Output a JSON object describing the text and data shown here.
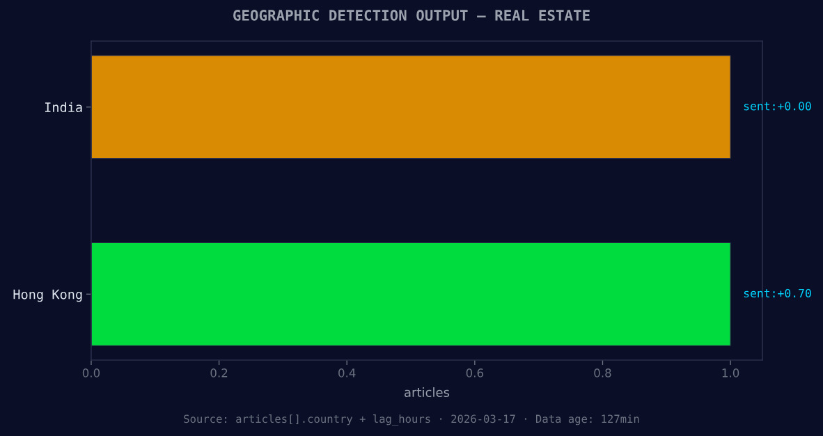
{
  "chart_data": {
    "type": "bar",
    "orientation": "horizontal",
    "title": "GEOGRAPHIC DETECTION OUTPUT — REAL ESTATE",
    "xlabel": "articles",
    "categories": [
      "India",
      "Hong Kong"
    ],
    "values": [
      1.0,
      1.0
    ],
    "colors": [
      "#d98b04",
      "#00db3d"
    ],
    "xlim": [
      0,
      1.05
    ],
    "xticks": [
      {
        "value": 0,
        "label": "0.0"
      },
      {
        "value": 0.2,
        "label": "0.2"
      },
      {
        "value": 0.4,
        "label": "0.4"
      },
      {
        "value": 0.6,
        "label": "0.6"
      },
      {
        "value": 0.8,
        "label": "0.8"
      },
      {
        "value": 1.0,
        "label": "1.0"
      }
    ],
    "annotations": [
      {
        "text": "sent:+0.00",
        "x": 1.0,
        "y": "India"
      },
      {
        "text": "sent:+0.70",
        "x": 1.0,
        "y": "Hong Kong"
      },
      "Source: articles[].country + lag_hours · 2026-03-17 · Data age: 127min"
    ]
  }
}
